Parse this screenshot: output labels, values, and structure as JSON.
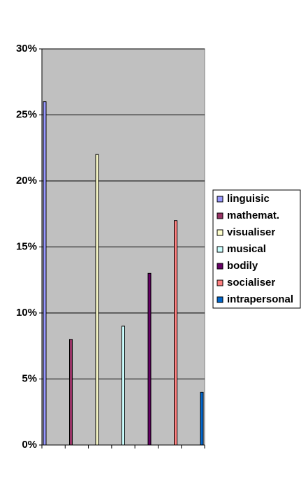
{
  "chart_data": {
    "type": "bar",
    "series": [
      {
        "name": "linguisic",
        "color": "#9999ff",
        "values": [
          26
        ]
      },
      {
        "name": "mathemat.",
        "color": "#993366",
        "values": [
          8
        ]
      },
      {
        "name": "visualiser",
        "color": "#ffffcc",
        "values": [
          22
        ]
      },
      {
        "name": "musical",
        "color": "#ccffff",
        "values": [
          9
        ]
      },
      {
        "name": "bodily",
        "color": "#660066",
        "values": [
          13
        ]
      },
      {
        "name": "socialiser",
        "color": "#ff8080",
        "values": [
          17
        ]
      },
      {
        "name": "intrapersonal",
        "color": "#0066cc",
        "values": [
          4
        ]
      }
    ],
    "ylim": [
      0,
      30
    ],
    "yticks": [
      {
        "value": 0,
        "label": "0%"
      },
      {
        "value": 5,
        "label": "5%"
      },
      {
        "value": 10,
        "label": "10%"
      },
      {
        "value": 15,
        "label": "15%"
      },
      {
        "value": 20,
        "label": "20%"
      },
      {
        "value": 25,
        "label": "25%"
      },
      {
        "value": 30,
        "label": "30%"
      }
    ],
    "grid": true,
    "legend": "right",
    "plot_background": "#c0c0c0"
  }
}
